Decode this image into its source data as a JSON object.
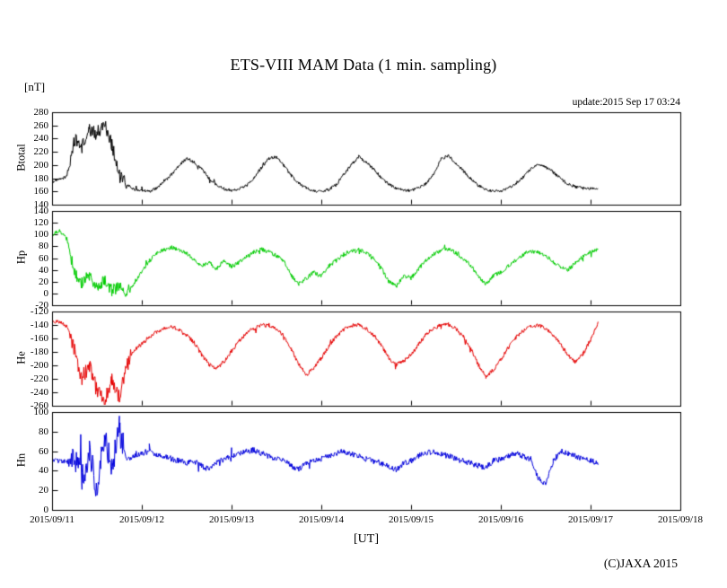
{
  "page": {
    "title": "ETS-VIII MAM Data (1 min. sampling)",
    "y_unit_label": "[nT]",
    "update_label": "update:2015 Sep 17 03:24",
    "x_axis_label": "[UT]",
    "copyright": "(C)JAXA 2015",
    "background": "#ffffff"
  },
  "chart_data": {
    "type": "line",
    "title": "ETS-VIII MAM Data (1 min. sampling)",
    "xlabel": "[UT]",
    "y_unit": "[nT]",
    "annotations": [
      "update:2015 Sep 17 03:24",
      "(C)JAXA 2015"
    ],
    "grid": false,
    "legend": "none",
    "x_range_hours": [
      0,
      168
    ],
    "x_tick_hours": [
      0,
      24,
      48,
      72,
      96,
      120,
      144,
      168
    ],
    "x_tick_labels": [
      "2015/09/11",
      "2015/09/12",
      "2015/09/13",
      "2015/09/14",
      "2015/09/15",
      "2015/09/16",
      "2015/09/17",
      "2015/09/18"
    ],
    "x_hours": [
      0,
      2,
      4,
      6,
      8,
      10,
      12,
      14,
      16,
      18,
      20,
      22,
      24,
      26,
      28,
      30,
      32,
      34,
      36,
      38,
      40,
      42,
      44,
      46,
      48,
      50,
      52,
      54,
      56,
      58,
      60,
      62,
      64,
      66,
      68,
      70,
      72,
      74,
      76,
      78,
      80,
      82,
      84,
      86,
      88,
      90,
      92,
      94,
      96,
      98,
      100,
      102,
      104,
      106,
      108,
      110,
      112,
      114,
      116,
      118,
      120,
      122,
      124,
      126,
      128,
      130,
      132,
      134,
      136,
      138,
      140,
      142,
      144,
      146
    ],
    "panels": [
      {
        "name": "Btotal",
        "color": "#000000",
        "ylim": [
          140,
          280
        ],
        "yticks": [
          140,
          160,
          180,
          200,
          220,
          240,
          260,
          280
        ],
        "noise_amplitude": 2.2,
        "storm_noise_amplitude": 8,
        "storm_window_hours": [
          4,
          20
        ],
        "values": [
          175,
          178,
          183,
          238,
          228,
          252,
          248,
          263,
          232,
          183,
          170,
          163,
          162,
          160,
          165,
          175,
          186,
          200,
          210,
          205,
          194,
          180,
          170,
          164,
          162,
          164,
          169,
          181,
          196,
          210,
          212,
          199,
          184,
          172,
          165,
          161,
          160,
          163,
          170,
          186,
          200,
          213,
          204,
          194,
          181,
          171,
          165,
          162,
          161,
          165,
          172,
          186,
          209,
          214,
          203,
          191,
          179,
          169,
          163,
          160,
          161,
          165,
          172,
          182,
          194,
          201,
          197,
          189,
          179,
          171,
          167,
          165,
          164,
          165
        ]
      },
      {
        "name": "Hp",
        "color": "#00cc00",
        "ylim": [
          -20,
          140
        ],
        "yticks": [
          -20,
          0,
          20,
          40,
          60,
          80,
          100,
          120,
          140
        ],
        "noise_amplitude": 3.5,
        "storm_noise_amplitude": 7,
        "storm_window_hours": [
          5,
          21
        ],
        "values": [
          100,
          106,
          92,
          35,
          18,
          32,
          8,
          22,
          4,
          14,
          2,
          18,
          38,
          55,
          68,
          74,
          78,
          74,
          68,
          58,
          46,
          52,
          42,
          55,
          46,
          52,
          62,
          70,
          75,
          71,
          64,
          54,
          30,
          16,
          26,
          36,
          30,
          46,
          56,
          66,
          72,
          75,
          69,
          59,
          44,
          20,
          12,
          30,
          26,
          42,
          56,
          66,
          73,
          75,
          69,
          59,
          48,
          28,
          16,
          30,
          36,
          46,
          56,
          66,
          72,
          70,
          64,
          54,
          44,
          40,
          52,
          62,
          70,
          76
        ]
      },
      {
        "name": "He",
        "color": "#e60000",
        "ylim": [
          -260,
          -120
        ],
        "yticks": [
          -260,
          -240,
          -220,
          -200,
          -180,
          -160,
          -140,
          -120
        ],
        "noise_amplitude": 3,
        "storm_noise_amplitude": 9,
        "storm_window_hours": [
          5,
          21
        ],
        "values": [
          -133,
          -136,
          -142,
          -178,
          -218,
          -198,
          -238,
          -256,
          -224,
          -246,
          -198,
          -178,
          -168,
          -158,
          -150,
          -145,
          -142,
          -148,
          -156,
          -166,
          -184,
          -199,
          -205,
          -194,
          -179,
          -164,
          -152,
          -145,
          -141,
          -140,
          -146,
          -156,
          -176,
          -199,
          -214,
          -204,
          -189,
          -171,
          -157,
          -147,
          -141,
          -139,
          -145,
          -155,
          -170,
          -189,
          -199,
          -194,
          -184,
          -169,
          -154,
          -145,
          -140,
          -139,
          -146,
          -158,
          -176,
          -199,
          -217,
          -207,
          -191,
          -174,
          -159,
          -149,
          -143,
          -140,
          -146,
          -155,
          -169,
          -186,
          -195,
          -183,
          -162,
          -138
        ]
      },
      {
        "name": "Hn",
        "color": "#0000dd",
        "ylim": [
          0,
          100
        ],
        "yticks": [
          0,
          20,
          40,
          60,
          80,
          100
        ],
        "noise_amplitude": 3,
        "storm_noise_amplitude": 11,
        "storm_window_hours": [
          5,
          19
        ],
        "values": [
          52,
          50,
          48,
          54,
          32,
          58,
          22,
          72,
          44,
          82,
          50,
          55,
          58,
          60,
          57,
          55,
          52,
          50,
          48,
          50,
          45,
          41,
          48,
          52,
          55,
          58,
          60,
          61,
          58,
          55,
          52,
          50,
          45,
          42,
          48,
          50,
          52,
          55,
          58,
          60,
          57,
          55,
          52,
          50,
          48,
          45,
          41,
          48,
          50,
          55,
          58,
          60,
          57,
          55,
          52,
          50,
          48,
          45,
          43,
          50,
          52,
          55,
          58,
          55,
          52,
          32,
          27,
          50,
          60,
          58,
          55,
          52,
          50,
          48
        ]
      }
    ]
  }
}
